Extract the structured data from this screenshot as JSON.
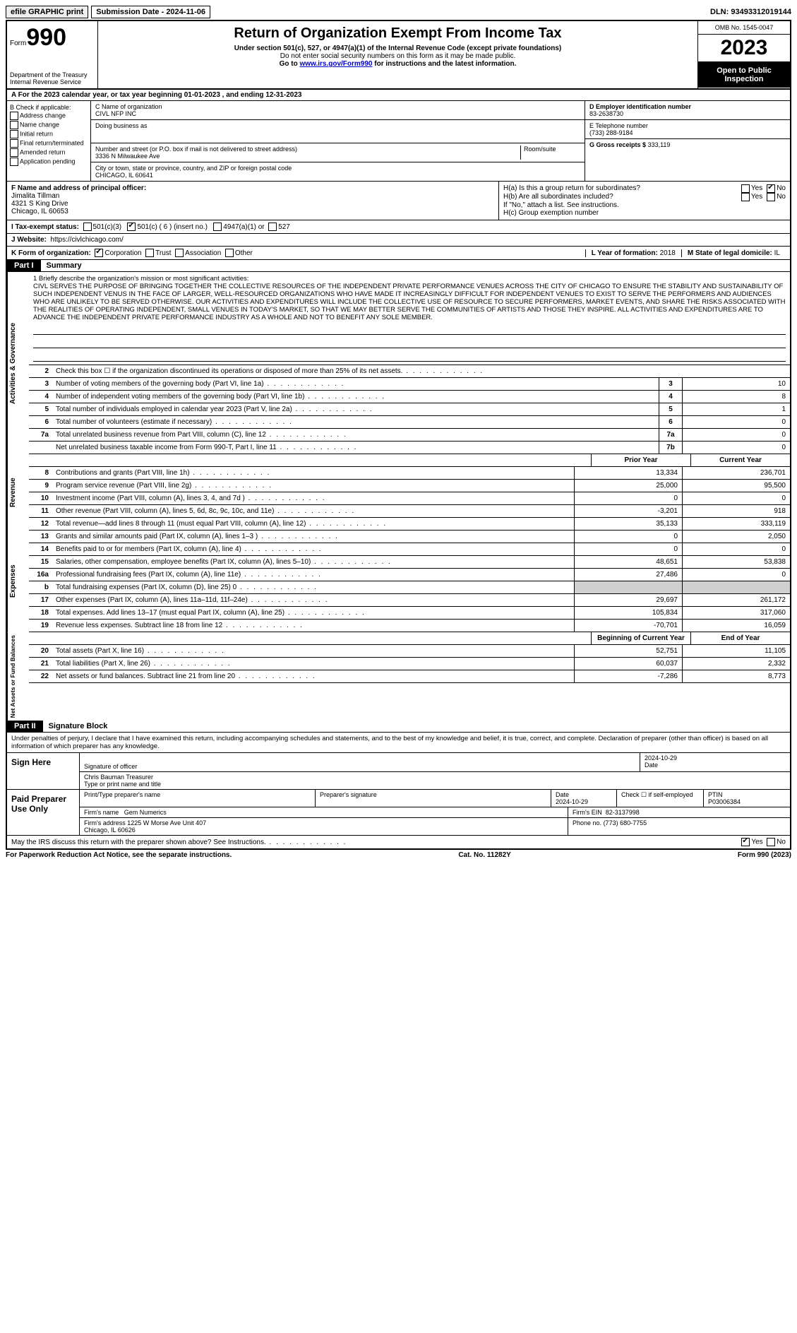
{
  "topbar": {
    "efile": "efile GRAPHIC print",
    "submission": "Submission Date - 2024-11-06",
    "dln": "DLN: 93493312019144"
  },
  "header": {
    "form_label": "Form",
    "form_no": "990",
    "dept": "Department of the Treasury\nInternal Revenue Service",
    "title": "Return of Organization Exempt From Income Tax",
    "sub1": "Under section 501(c), 527, or 4947(a)(1) of the Internal Revenue Code (except private foundations)",
    "sub2": "Do not enter social security numbers on this form as it may be made public.",
    "sub3_pre": "Go to ",
    "sub3_link": "www.irs.gov/Form990",
    "sub3_post": " for instructions and the latest information.",
    "omb": "OMB No. 1545-0047",
    "year": "2023",
    "open": "Open to Public Inspection"
  },
  "row_a": "A For the 2023 calendar year, or tax year beginning 01-01-2023   , and ending 12-31-2023",
  "col_b": {
    "hdr": "B Check if applicable:",
    "items": [
      "Address change",
      "Name change",
      "Initial return",
      "Final return/terminated",
      "Amended return",
      "Application pending"
    ]
  },
  "col_c": {
    "name_lbl": "C Name of organization",
    "name": "CIVL NFP INC",
    "dba_lbl": "Doing business as",
    "addr_lbl": "Number and street (or P.O. box if mail is not delivered to street address)",
    "room_lbl": "Room/suite",
    "addr": "3336 N Milwaukee Ave",
    "city_lbl": "City or town, state or province, country, and ZIP or foreign postal code",
    "city": "CHICAGO, IL  60641"
  },
  "col_d": {
    "ein_lbl": "D Employer identification number",
    "ein": "83-2638730",
    "tel_lbl": "E Telephone number",
    "tel": "(733) 288-9184",
    "gross_lbl": "G Gross receipts $",
    "gross": "333,119"
  },
  "section_f": {
    "lbl": "F  Name and address of principal officer:",
    "name": "Jimalita Tillman",
    "addr1": "4321 S King Drive",
    "addr2": "Chicago, IL  60653"
  },
  "section_h": {
    "ha": "H(a)  Is this a group return for subordinates?",
    "hb": "H(b)  Are all subordinates included?",
    "hb_note": "If \"No,\" attach a list. See instructions.",
    "hc": "H(c)  Group exemption number",
    "yes": "Yes",
    "no": "No"
  },
  "row_i": {
    "lbl": "I   Tax-exempt status:",
    "o1": "501(c)(3)",
    "o2": "501(c) ( 6 ) (insert no.)",
    "o3": "4947(a)(1) or",
    "o4": "527"
  },
  "row_j": {
    "lbl": "J   Website:",
    "val": "https://civlchicago.com/"
  },
  "row_k": {
    "lbl": "K Form of organization:",
    "o1": "Corporation",
    "o2": "Trust",
    "o3": "Association",
    "o4": "Other",
    "l_lbl": "L Year of formation:",
    "l_val": "2018",
    "m_lbl": "M State of legal domicile:",
    "m_val": "IL"
  },
  "part1": {
    "tag": "Part I",
    "title": "Summary"
  },
  "mission": {
    "lbl": "1  Briefly describe the organization's mission or most significant activities:",
    "text": "CIVL SERVES THE PURPOSE OF BRINGING TOGETHER THE COLLECTIVE RESOURCES OF THE INDEPENDENT PRIVATE PERFORMANCE VENUES ACROSS THE CITY OF CHICAGO TO ENSURE THE STABILITY AND SUSTAINABILITY OF SUCH INDEPENDENT VENUS IN THE FACE OF LARGER, WELL-RESOURCED ORGANIZATIONS WHO HAVE MADE IT INCREASINGLY DIFFICULT FOR INDEPENDENT VENUES TO EXIST TO SERVE THE PERFORMERS AND AUDIENCES WHO ARE UNLIKELY TO BE SERVED OTHERWISE. OUR ACTIVITIES AND EXPENDITURES WILL INCLUDE THE COLLECTIVE USE OF RESOURCE TO SECURE PERFORMERS, MARKET EVENTS, AND SHARE THE RISKS ASSOCIATED WITH THE REALITIES OF OPERATING INDEPENDENT, SMALL VENUES IN TODAY'S MARKET, SO THAT WE MAY BETTER SERVE THE COMMUNITIES OF ARTISTS AND THOSE THEY INSPIRE. ALL ACTIVITIES AND EXPENDITURES ARE TO ADVANCE THE INDEPENDENT PRIVATE PERFORMANCE INDUSTRY AS A WHOLE AND NOT TO BENEFIT ANY SOLE MEMBER."
  },
  "side_labels": {
    "gov": "Activities & Governance",
    "rev": "Revenue",
    "exp": "Expenses",
    "net": "Net Assets or Fund Balances"
  },
  "gov_rows": [
    {
      "n": "2",
      "t": "Check this box  ☐  if the organization discontinued its operations or disposed of more than 25% of its net assets.",
      "k": "",
      "v": ""
    },
    {
      "n": "3",
      "t": "Number of voting members of the governing body (Part VI, line 1a)",
      "k": "3",
      "v": "10"
    },
    {
      "n": "4",
      "t": "Number of independent voting members of the governing body (Part VI, line 1b)",
      "k": "4",
      "v": "8"
    },
    {
      "n": "5",
      "t": "Total number of individuals employed in calendar year 2023 (Part V, line 2a)",
      "k": "5",
      "v": "1"
    },
    {
      "n": "6",
      "t": "Total number of volunteers (estimate if necessary)",
      "k": "6",
      "v": "0"
    },
    {
      "n": "7a",
      "t": "Total unrelated business revenue from Part VIII, column (C), line 12",
      "k": "7a",
      "v": "0"
    },
    {
      "n": "",
      "t": "Net unrelated business taxable income from Form 990-T, Part I, line 11",
      "k": "7b",
      "v": "0"
    }
  ],
  "col_hdrs": {
    "prior": "Prior Year",
    "current": "Current Year",
    "boy": "Beginning of Current Year",
    "eoy": "End of Year"
  },
  "rev_rows": [
    {
      "n": "8",
      "t": "Contributions and grants (Part VIII, line 1h)",
      "p": "13,334",
      "c": "236,701"
    },
    {
      "n": "9",
      "t": "Program service revenue (Part VIII, line 2g)",
      "p": "25,000",
      "c": "95,500"
    },
    {
      "n": "10",
      "t": "Investment income (Part VIII, column (A), lines 3, 4, and 7d )",
      "p": "0",
      "c": "0"
    },
    {
      "n": "11",
      "t": "Other revenue (Part VIII, column (A), lines 5, 6d, 8c, 9c, 10c, and 11e)",
      "p": "-3,201",
      "c": "918"
    },
    {
      "n": "12",
      "t": "Total revenue—add lines 8 through 11 (must equal Part VIII, column (A), line 12)",
      "p": "35,133",
      "c": "333,119"
    }
  ],
  "exp_rows": [
    {
      "n": "13",
      "t": "Grants and similar amounts paid (Part IX, column (A), lines 1–3 )",
      "p": "0",
      "c": "2,050"
    },
    {
      "n": "14",
      "t": "Benefits paid to or for members (Part IX, column (A), line 4)",
      "p": "0",
      "c": "0"
    },
    {
      "n": "15",
      "t": "Salaries, other compensation, employee benefits (Part IX, column (A), lines 5–10)",
      "p": "48,651",
      "c": "53,838"
    },
    {
      "n": "16a",
      "t": "Professional fundraising fees (Part IX, column (A), line 11e)",
      "p": "27,486",
      "c": "0"
    },
    {
      "n": "b",
      "t": "Total fundraising expenses (Part IX, column (D), line 25) 0",
      "p": "",
      "c": "",
      "shade": true
    },
    {
      "n": "17",
      "t": "Other expenses (Part IX, column (A), lines 11a–11d, 11f–24e)",
      "p": "29,697",
      "c": "261,172"
    },
    {
      "n": "18",
      "t": "Total expenses. Add lines 13–17 (must equal Part IX, column (A), line 25)",
      "p": "105,834",
      "c": "317,060"
    },
    {
      "n": "19",
      "t": "Revenue less expenses. Subtract line 18 from line 12",
      "p": "-70,701",
      "c": "16,059"
    }
  ],
  "net_rows": [
    {
      "n": "20",
      "t": "Total assets (Part X, line 16)",
      "p": "52,751",
      "c": "11,105"
    },
    {
      "n": "21",
      "t": "Total liabilities (Part X, line 26)",
      "p": "60,037",
      "c": "2,332"
    },
    {
      "n": "22",
      "t": "Net assets or fund balances. Subtract line 21 from line 20",
      "p": "-7,286",
      "c": "8,773"
    }
  ],
  "part2": {
    "tag": "Part II",
    "title": "Signature Block",
    "decl": "Under penalties of perjury, I declare that I have examined this return, including accompanying schedules and statements, and to the best of my knowledge and belief, it is true, correct, and complete. Declaration of preparer (other than officer) is based on all information of which preparer has any knowledge."
  },
  "sign": {
    "here": "Sign Here",
    "sig_lbl": "Signature of officer",
    "name": "Chris Bauman  Treasurer",
    "type_lbl": "Type or print name and title",
    "date_lbl": "Date",
    "date": "2024-10-29"
  },
  "prep": {
    "here": "Paid Preparer Use Only",
    "name_lbl": "Print/Type preparer's name",
    "sig_lbl": "Preparer's signature",
    "date_lbl": "Date",
    "date": "2024-10-29",
    "self_lbl": "Check ☐ if self-employed",
    "ptin_lbl": "PTIN",
    "ptin": "P03006384",
    "firm_lbl": "Firm's name",
    "firm": "Gem Numerics",
    "ein_lbl": "Firm's EIN",
    "ein": "82-3137998",
    "addr_lbl": "Firm's address",
    "addr": "1225 W Morse Ave Unit 407\nChicago, IL  60626",
    "phone_lbl": "Phone no.",
    "phone": "(773) 680-7755"
  },
  "discuss": {
    "q": "May the IRS discuss this return with the preparer shown above? See Instructions.",
    "yes": "Yes",
    "no": "No"
  },
  "footer": {
    "l": "For Paperwork Reduction Act Notice, see the separate instructions.",
    "m": "Cat. No. 11282Y",
    "r": "Form 990 (2023)"
  }
}
